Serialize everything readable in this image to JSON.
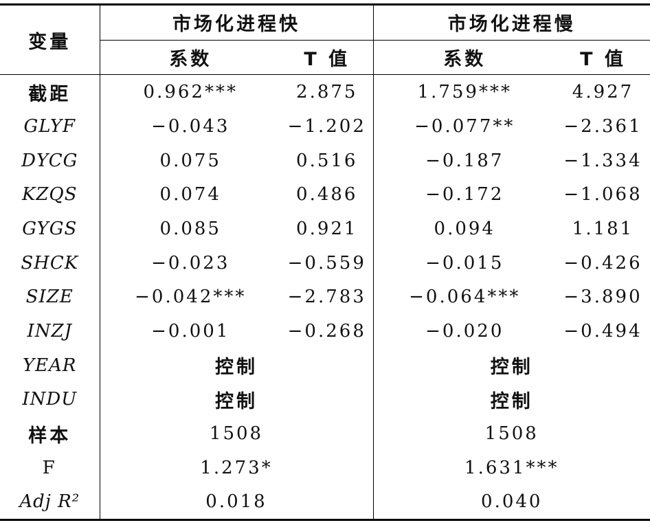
{
  "table": {
    "header": {
      "variable": "变量",
      "groups": [
        "市场化进程快",
        "市场化进程慢"
      ],
      "sub": [
        "系数",
        "T 值",
        "系数",
        "T 值"
      ]
    },
    "rows": [
      [
        "截距",
        "0.962***",
        "2.875",
        "1.759***",
        "4.927"
      ],
      [
        "GLYF",
        "−0.043",
        "−1.202",
        "−0.077**",
        "−2.361"
      ],
      [
        "DYCG",
        "0.075",
        "0.516",
        "−0.187",
        "−1.334"
      ],
      [
        "KZQS",
        "0.074",
        "0.486",
        "−0.172",
        "−1.068"
      ],
      [
        "GYGS",
        "0.085",
        "0.921",
        "0.094",
        "1.181"
      ],
      [
        "SHCK",
        "−0.023",
        "−0.559",
        "−0.015",
        "−0.426"
      ],
      [
        "SIZE",
        "−0.042***",
        "−2.783",
        "−0.064***",
        "−3.890"
      ],
      [
        "INZJ",
        "−0.001",
        "−0.268",
        "−0.020",
        "−0.494"
      ],
      [
        "YEAR",
        "控制",
        "控制"
      ],
      [
        "INDU",
        "控制",
        "控制"
      ],
      [
        "样本",
        "1508",
        "1508"
      ],
      [
        "F",
        "1.273*",
        "1.631***"
      ],
      [
        "Adj R²",
        "0.018",
        "0.040"
      ]
    ]
  }
}
